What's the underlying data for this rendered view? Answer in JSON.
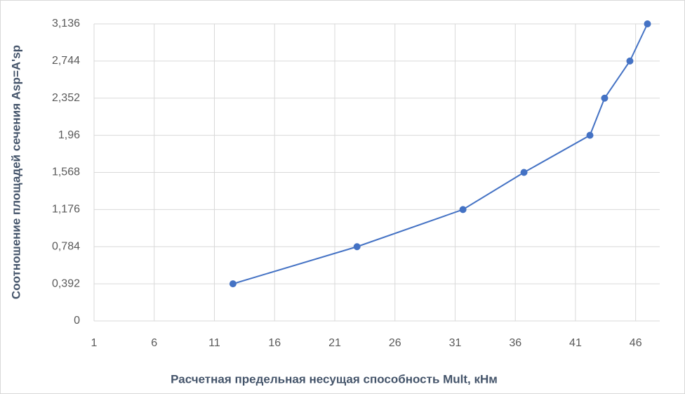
{
  "chart_data": {
    "type": "line",
    "x_label": "Расчетная предельная несущая способность Mult, кНм",
    "y_label": "Соотношение площадей сечения Asp=A'sp",
    "series": [
      {
        "name": "Asp=A'sp",
        "color": "#4472c4",
        "x": [
          12.54,
          22.85,
          31.65,
          36.72,
          42.2,
          43.42,
          45.52,
          46.98
        ],
        "values": [
          0.392,
          0.784,
          1.176,
          1.568,
          1.96,
          2.352,
          2.744,
          3.136
        ]
      }
    ],
    "xlim": [
      1,
      48
    ],
    "xticks": [
      1,
      6,
      11,
      16,
      21,
      26,
      31,
      36,
      41,
      46
    ],
    "ylim": [
      0,
      3.136
    ],
    "yticks": [
      0,
      {
        "value": 0.392,
        "label": "0,392"
      },
      {
        "value": 0.784,
        "label": "0,784"
      },
      {
        "value": 1.176,
        "label": "1,176"
      },
      {
        "value": 1.568,
        "label": "1,568"
      },
      {
        "value": 1.96,
        "label": "1,96"
      },
      {
        "value": 2.352,
        "label": "2,352"
      },
      {
        "value": 2.744,
        "label": "2,744"
      },
      {
        "value": 3.136,
        "label": "3,136"
      }
    ],
    "grid": true
  }
}
